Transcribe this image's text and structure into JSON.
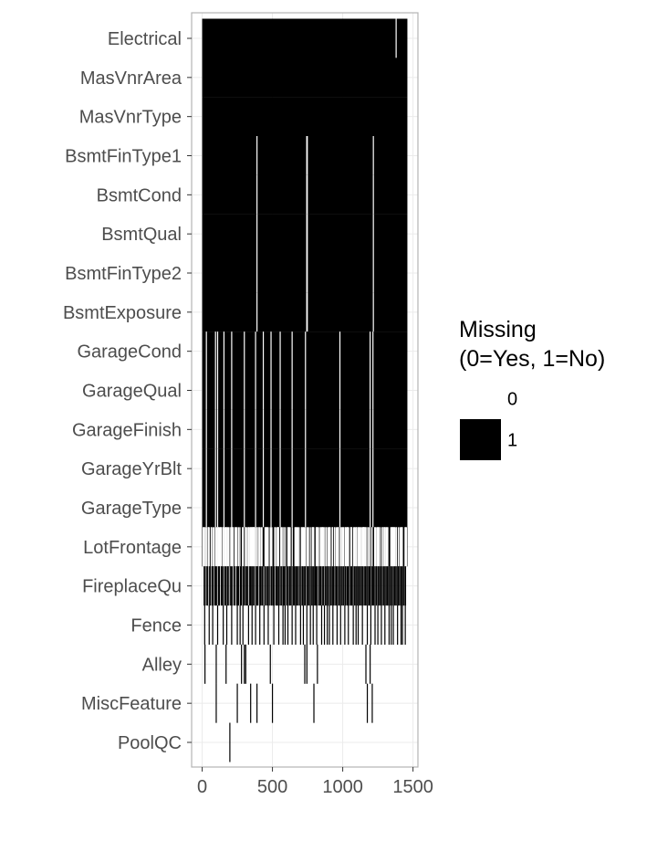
{
  "chart_data": {
    "type": "heatmap",
    "title": "",
    "xlabel": "",
    "ylabel": "",
    "xlim": [
      -75,
      1535
    ],
    "x_ticks": [
      0,
      500,
      1000,
      1500
    ],
    "rows": [
      "Electrical",
      "MasVnrArea",
      "MasVnrType",
      "BsmtFinType1",
      "BsmtCond",
      "BsmtQual",
      "BsmtFinType2",
      "BsmtExposure",
      "GarageCond",
      "GarageQual",
      "GarageFinish",
      "GarageYrBlt",
      "GarageType",
      "LotFrontage",
      "FireplaceQu",
      "Fence",
      "Alley",
      "MiscFeature",
      "PoolQC"
    ],
    "n_obs": 1460,
    "grid": true,
    "legend": {
      "title": "Missing\n(0=Yes, 1=No)",
      "position": "right",
      "entries": [
        {
          "label": "0",
          "color": "#ffffff"
        },
        {
          "label": "1",
          "color": "#000000"
        }
      ]
    },
    "colors": {
      "present": "#000000",
      "missing": "#ffffff",
      "panel_border": "#b3b3b3",
      "grid": "#ebebeb"
    },
    "series": [
      {
        "name": "Electrical",
        "type": "mostly_present",
        "missing_x": [
          1380
        ]
      },
      {
        "name": "MasVnrArea",
        "type": "mostly_present",
        "missing_x": []
      },
      {
        "name": "MasVnrType",
        "type": "mostly_present",
        "missing_x": []
      },
      {
        "name": "BsmtFinType1",
        "type": "mostly_present",
        "missing_x": [
          390,
          744,
          748,
          1218
        ]
      },
      {
        "name": "BsmtCond",
        "type": "mostly_present",
        "missing_x": [
          390,
          744,
          748,
          1218
        ]
      },
      {
        "name": "BsmtQual",
        "type": "mostly_present",
        "missing_x": [
          390,
          744,
          748,
          1218
        ]
      },
      {
        "name": "BsmtFinType2",
        "type": "mostly_present",
        "missing_x": [
          390,
          744,
          748,
          1218
        ]
      },
      {
        "name": "BsmtExposure",
        "type": "mostly_present",
        "missing_x": [
          390,
          744,
          748,
          1218
        ]
      },
      {
        "name": "GarageCond",
        "type": "mostly_present",
        "missing_x": [
          30,
          95,
          110,
          155,
          210,
          300,
          380,
          435,
          490,
          555,
          640,
          735,
          980,
          1195,
          1215
        ]
      },
      {
        "name": "GarageQual",
        "type": "mostly_present",
        "missing_x": [
          30,
          95,
          110,
          155,
          210,
          300,
          380,
          435,
          490,
          555,
          640,
          735,
          980,
          1195,
          1215
        ]
      },
      {
        "name": "GarageFinish",
        "type": "mostly_present",
        "missing_x": [
          30,
          95,
          110,
          155,
          210,
          300,
          380,
          435,
          490,
          555,
          640,
          735,
          980,
          1195,
          1215
        ]
      },
      {
        "name": "GarageYrBlt",
        "type": "mostly_present",
        "missing_x": [
          30,
          95,
          110,
          155,
          210,
          300,
          380,
          435,
          490,
          555,
          640,
          735,
          980,
          1195,
          1215
        ]
      },
      {
        "name": "GarageType",
        "type": "mostly_present",
        "missing_x": [
          30,
          95,
          110,
          155,
          210,
          300,
          380,
          435,
          490,
          555,
          640,
          735,
          980,
          1195,
          1215
        ]
      },
      {
        "name": "LotFrontage",
        "type": "mostly_present",
        "missing_x": [
          7,
          12,
          14,
          16,
          24,
          31,
          42,
          43,
          44,
          50,
          64,
          66,
          76,
          84,
          95,
          100,
          104,
          111,
          113,
          116,
          120,
          126,
          131,
          133,
          136,
          147,
          149,
          152,
          153,
          160,
          166,
          169,
          170,
          177,
          180,
          186,
          191,
          203,
          207,
          208,
          209,
          214,
          218,
          221,
          234,
          237,
          244,
          249,
          260,
          269,
          287,
          288,
          293,
          307,
          308,
          310,
          319,
          328,
          330,
          335,
          342,
          346,
          347,
          351,
          356,
          360,
          361,
          364,
          366,
          369,
          370,
          375,
          384,
          392,
          393,
          404,
          405,
          412,
          421,
          426,
          447,
          452,
          457,
          458,
          459,
          465,
          470,
          484,
          490,
          496,
          516,
          518,
          528,
          537,
          538,
          539,
          541,
          545,
          559,
          564,
          569,
          580,
          582,
          593,
          610,
          612,
          616,
          623,
          626,
          641,
          660,
          666,
          668,
          672,
          679,
          682,
          690,
          706,
          709,
          714,
          720,
          721,
          726,
          734,
          745,
          751,
          757,
          770,
          783,
          785,
          789,
          791,
          794,
          811,
          816,
          817,
          822,
          828,
          840,
          845,
          849,
          855,
          856,
          859,
          865,
          868,
          879,
          882,
          893,
          900,
          904,
          908,
          911,
          925,
          927,
          928,
          941,
          944,
          954,
          961,
          967,
          968,
          970,
          983,
          988,
          996,
          997,
          1003,
          1006,
          1017,
          1018,
          1024,
          1030,
          1032,
          1033,
          1037,
          1042,
          1057,
          1059,
          1060,
          1064,
          1077,
          1084,
          1086,
          1094,
          1096,
          1098,
          1108,
          1110,
          1116,
          1122,
          1124,
          1131,
          1138,
          1143,
          1146,
          1148,
          1150,
          1151,
          1153,
          1154,
          1161,
          1164,
          1166,
          1178,
          1180,
          1190,
          1193,
          1206,
          1209,
          1227,
          1230,
          1235,
          1244,
          1247,
          1251,
          1253,
          1260,
          1262,
          1275,
          1286,
          1287,
          1288,
          1297,
          1300,
          1301,
          1309,
          1312,
          1318,
          1321,
          1342,
          1346,
          1348,
          1354,
          1356,
          1357,
          1362,
          1366,
          1368,
          1373,
          1381,
          1383,
          1396,
          1407,
          1414,
          1419,
          1423,
          1424,
          1443,
          1446,
          1449,
          1453
        ]
      },
      {
        "name": "FireplaceQu",
        "type": "sparse_present",
        "present_x": [
          14,
          22,
          34,
          40,
          53,
          60,
          72,
          78,
          90,
          97,
          105,
          117,
          123,
          136,
          141,
          150,
          162,
          170,
          180,
          186,
          199,
          207,
          216,
          229,
          233,
          246,
          252,
          260,
          272,
          279,
          290,
          298,
          308,
          316,
          323,
          336,
          344,
          352,
          360,
          368,
          380,
          389,
          395,
          407,
          415,
          424,
          432,
          445,
          451,
          462,
          469,
          478,
          490,
          497,
          506,
          514,
          526,
          533,
          541,
          549,
          560,
          568,
          578,
          585,
          593,
          604,
          612,
          622,
          628,
          638,
          648,
          656,
          665,
          672,
          680,
          691,
          699,
          710,
          716,
          725,
          733,
          744,
          752,
          761,
          770,
          780,
          788,
          796,
          804,
          812,
          820,
          832,
          840,
          847,
          858,
          864,
          875,
          884,
          893,
          899,
          910,
          918,
          927,
          935,
          945,
          954,
          962,
          972,
          978,
          988,
          996,
          1005,
          1015,
          1021,
          1031,
          1039,
          1048,
          1058,
          1064,
          1073,
          1083,
          1092,
          1100,
          1108,
          1117,
          1126,
          1134,
          1143,
          1153,
          1161,
          1170,
          1178,
          1187,
          1195,
          1205,
          1213,
          1221,
          1230,
          1239,
          1249,
          1256,
          1265,
          1274,
          1282,
          1292,
          1300,
          1309,
          1317,
          1326,
          1334,
          1343,
          1352,
          1361,
          1370,
          1378,
          1387,
          1395,
          1404,
          1413,
          1421,
          1430,
          1438,
          1447
        ]
      },
      {
        "name": "Fence",
        "type": "sparse_present",
        "present_x": [
          18,
          50,
          75,
          110,
          150,
          175,
          210,
          250,
          270,
          290,
          330,
          355,
          380,
          410,
          440,
          470,
          510,
          545,
          575,
          590,
          610,
          640,
          665,
          700,
          720,
          745,
          770,
          790,
          815,
          850,
          870,
          890,
          905,
          930,
          960,
          985,
          1015,
          1040,
          1075,
          1095,
          1110,
          1140,
          1175,
          1200,
          1230,
          1250,
          1275,
          1300,
          1330,
          1345,
          1360,
          1390,
          1415,
          1425,
          1445
        ]
      },
      {
        "name": "Alley",
        "type": "sparse_present",
        "present_x": [
          20,
          100,
          170,
          280,
          300,
          310,
          485,
          730,
          745,
          820,
          1165,
          1195
        ]
      },
      {
        "name": "MiscFeature",
        "type": "sparse_present",
        "present_x": [
          100,
          250,
          345,
          390,
          500,
          795,
          1175,
          1210
        ]
      },
      {
        "name": "PoolQC",
        "type": "sparse_present",
        "present_x": [
          197
        ]
      }
    ]
  }
}
